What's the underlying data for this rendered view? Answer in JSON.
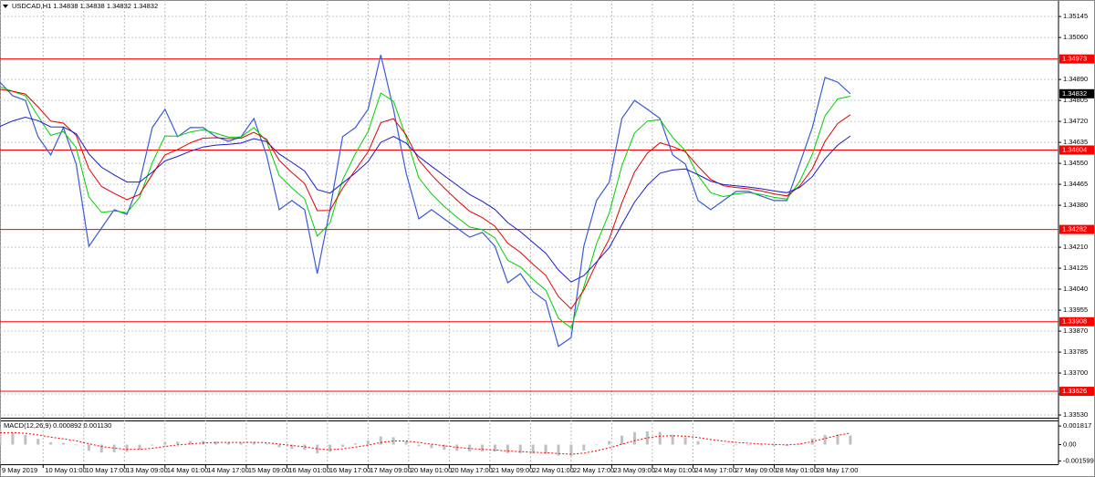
{
  "chart_data": [
    {
      "type": "line",
      "title": "USDCAD,H1  1.34838 1.34838 1.34832 1.34832",
      "x": [
        0,
        5,
        10,
        15,
        20,
        25,
        30,
        35,
        40,
        45,
        50,
        55,
        60,
        65,
        70,
        75,
        80,
        85,
        90,
        95,
        100,
        105,
        110,
        115,
        120,
        125,
        130,
        135,
        140,
        145,
        150,
        155,
        160,
        165,
        170,
        175,
        180,
        185,
        190,
        195,
        200,
        205,
        210,
        215,
        220,
        225,
        230,
        235,
        240,
        245,
        250,
        255,
        260,
        265,
        270,
        275,
        280,
        285,
        290,
        295,
        300,
        305,
        310,
        315,
        320,
        325,
        330,
        335
      ],
      "xlim": [
        0,
        417
      ],
      "xticks": [
        {
          "value": 0,
          "label": "9 May 2019"
        },
        {
          "value": 17,
          "label": "10 May 01:00"
        },
        {
          "value": 33,
          "label": "10 May 17:00"
        },
        {
          "value": 49,
          "label": "13 May 09:00"
        },
        {
          "value": 65,
          "label": "14 May 01:00"
        },
        {
          "value": 81,
          "label": "14 May 17:00"
        },
        {
          "value": 97,
          "label": "15 May 09:00"
        },
        {
          "value": 113,
          "label": "16 May 01:00"
        },
        {
          "value": 129,
          "label": "16 May 17:00"
        },
        {
          "value": 145,
          "label": "17 May 09:00"
        },
        {
          "value": 161,
          "label": "20 May 01:00"
        },
        {
          "value": 177,
          "label": "20 May 17:00"
        },
        {
          "value": 193,
          "label": "21 May 09:00"
        },
        {
          "value": 209,
          "label": "22 May 01:00"
        },
        {
          "value": 225,
          "label": "22 May 17:00"
        },
        {
          "value": 241,
          "label": "23 May 09:00"
        },
        {
          "value": 257,
          "label": "24 May 01:00"
        },
        {
          "value": 273,
          "label": "24 May 17:00"
        },
        {
          "value": 289,
          "label": "27 May 09:00"
        },
        {
          "value": 305,
          "label": "28 May 01:00"
        },
        {
          "value": 321,
          "label": "28 May 17:00"
        }
      ],
      "ylim": [
        1.33519,
        1.35212
      ],
      "yticks": [
        1.35145,
        {
          "value": 1.3506,
          "label": "1.35060"
        },
        {
          "value": 1.3489,
          "label": "1.34890"
        },
        1.34805,
        {
          "value": 1.3472,
          "label": "1.34720"
        },
        1.34635,
        {
          "value": 1.3455,
          "label": "1.34550"
        },
        1.34465,
        {
          "value": 1.3438,
          "label": "1.34380"
        },
        {
          "value": 1.3421,
          "label": "1.34210"
        },
        1.34125,
        {
          "value": 1.3404,
          "label": "1.34040"
        },
        1.33955,
        {
          "value": 1.3387,
          "label": "1.33870"
        },
        1.33785,
        {
          "value": 1.337,
          "label": "1.33700"
        },
        1.33615,
        {
          "value": 1.3353,
          "label": "1.33530"
        }
      ],
      "grid": true,
      "series": [
        {
          "color": "#3a5ad8",
          "values": [
            1.34879,
            1.34824,
            1.34805,
            1.34658,
            1.34584,
            1.34695,
            1.34547,
            1.34214,
            1.34288,
            1.34362,
            1.34343,
            1.34473,
            1.34695,
            1.34769,
            1.34658,
            1.34695,
            1.34695,
            1.34658,
            1.34639,
            1.34658,
            1.34732,
            1.34584,
            1.34362,
            1.34399,
            1.34362,
            1.34103,
            1.34362,
            1.34658,
            1.34695,
            1.34769,
            1.3499,
            1.34769,
            1.3451,
            1.34325,
            1.34362,
            1.34325,
            1.34288,
            1.34251,
            1.3427,
            1.34214,
            1.34066,
            1.34103,
            1.34029,
            1.33992,
            1.33808,
            1.33844,
            1.34214,
            1.34399,
            1.34473,
            1.34732,
            1.34805,
            1.34769,
            1.34732,
            1.34584,
            1.34547,
            1.34399,
            1.34362,
            1.34399,
            1.34436,
            1.34436,
            1.34417,
            1.34399,
            1.34399,
            1.34547,
            1.34695,
            1.34898,
            1.34879,
            1.34832
          ]
        },
        {
          "color": "#00d000",
          "values": [
            1.3486,
            1.34842,
            1.34824,
            1.34741,
            1.34663,
            1.34679,
            1.34613,
            1.34414,
            1.34351,
            1.34357,
            1.3435,
            1.34412,
            1.34553,
            1.34661,
            1.3466,
            1.34677,
            1.34686,
            1.34672,
            1.34656,
            1.34657,
            1.34695,
            1.3464,
            1.34501,
            1.3445,
            1.34406,
            1.34255,
            1.34308,
            1.34483,
            1.34589,
            1.34679,
            1.34835,
            1.34802,
            1.34656,
            1.34491,
            1.34426,
            1.34376,
            1.34332,
            1.34292,
            1.34281,
            1.34248,
            1.34157,
            1.3413,
            1.3408,
            1.34036,
            1.33922,
            1.33883,
            1.34049,
            1.34224,
            1.34348,
            1.3454,
            1.34673,
            1.34721,
            1.34727,
            1.34655,
            1.34601,
            1.345,
            1.34431,
            1.34415,
            1.34426,
            1.34431,
            1.34424,
            1.34412,
            1.34405,
            1.34476,
            1.34586,
            1.34742,
            1.34811,
            1.34822
          ]
        },
        {
          "color": "#e00000",
          "values": [
            1.3485,
            1.34842,
            1.34831,
            1.34779,
            1.34721,
            1.34713,
            1.34663,
            1.34528,
            1.34456,
            1.34428,
            1.34403,
            1.34424,
            1.34505,
            1.34584,
            1.34606,
            1.34633,
            1.34652,
            1.34654,
            1.3465,
            1.34652,
            1.34676,
            1.34648,
            1.34562,
            1.34513,
            1.34468,
            1.34358,
            1.34359,
            1.34449,
            1.34523,
            1.34597,
            1.34715,
            1.34731,
            1.34665,
            1.34563,
            1.34503,
            1.3445,
            1.34401,
            1.34356,
            1.3433,
            1.34295,
            1.34226,
            1.34189,
            1.34141,
            1.34096,
            1.3401,
            1.3396,
            1.34036,
            1.34145,
            1.34243,
            1.3439,
            1.34515,
            1.34591,
            1.34633,
            1.34618,
            1.34597,
            1.34538,
            1.34485,
            1.34459,
            1.34452,
            1.34447,
            1.34438,
            1.34426,
            1.34418,
            1.34457,
            1.34528,
            1.34639,
            1.34711,
            1.34747
          ]
        },
        {
          "color": "#1a1ac8",
          "values": [
            1.347,
            1.34722,
            1.34737,
            1.34723,
            1.34698,
            1.34697,
            1.3467,
            1.34588,
            1.34534,
            1.34503,
            1.34474,
            1.34474,
            1.34514,
            1.3456,
            1.34578,
            1.34599,
            1.34616,
            1.34624,
            1.34627,
            1.34632,
            1.3465,
            1.34638,
            1.34588,
            1.34554,
            1.34519,
            1.34444,
            1.34429,
            1.3447,
            1.34511,
            1.34557,
            1.34635,
            1.34659,
            1.34632,
            1.34577,
            1.34538,
            1.345,
            1.34462,
            1.34424,
            1.34396,
            1.34363,
            1.3431,
            1.34273,
            1.34229,
            1.34186,
            1.34118,
            1.34069,
            1.34095,
            1.3415,
            1.34208,
            1.34302,
            1.34393,
            1.34461,
            1.3451,
            1.34523,
            1.34527,
            1.34504,
            1.34478,
            1.34464,
            1.34459,
            1.34454,
            1.34447,
            1.34438,
            1.34431,
            1.34452,
            1.34496,
            1.34568,
            1.34624,
            1.34661
          ]
        }
      ],
      "hlines": [
        {
          "value": 1.34973,
          "color": "#ff0000"
        },
        {
          "value": 1.34604,
          "color": "#ff0000"
        },
        {
          "value": 1.34282,
          "color": "#ff0000"
        },
        {
          "value": 1.33908,
          "color": "#ff0000"
        },
        {
          "value": 1.33626,
          "color": "#ff0000"
        }
      ],
      "last_price": 1.34832
    },
    {
      "type": "macd",
      "title": "MACD(12,26,9) 0.000892 0.001130",
      "ylim": [
        -0.00192,
        0.00227
      ],
      "yticks": [
        0.001817,
        {
          "value": 0,
          "label": "0.00"
        },
        -0.001599
      ],
      "histogram": {
        "color": "#c0c0c0",
        "values": [
          0.0015,
          0.0012,
          0.00094,
          0.00056,
          0.00023,
          0.00016,
          -7e-05,
          -0.0006,
          -0.00078,
          -0.00075,
          -0.00071,
          -0.0005,
          -9e-05,
          0.00024,
          0.00028,
          0.00034,
          0.00036,
          0.0003,
          0.00023,
          0.0002,
          0.00026,
          0.0001,
          -0.00026,
          -0.00041,
          -0.00051,
          -0.00086,
          -0.0007,
          -0.00021,
          0.00012,
          0.0004,
          0.0008,
          0.00072,
          0.00033,
          -0.00014,
          -0.00035,
          -0.0005,
          -0.00061,
          -0.00068,
          -0.00066,
          -0.00068,
          -0.00084,
          -0.00084,
          -0.00088,
          -0.0009,
          -0.00108,
          -0.00109,
          -0.00059,
          -5e-05,
          0.00035,
          0.00088,
          0.00122,
          0.0013,
          0.00123,
          0.00095,
          0.0007,
          0.00034,
          7e-05,
          -5e-05,
          -7e-05,
          -7e-05,
          -9e-05,
          -0.00012,
          -0.00013,
          5e-05,
          0.0006,
          0.00095,
          0.001,
          0.000892
        ]
      },
      "signal": {
        "color": "#ff0000",
        "values": [
          0.00115,
          0.00117,
          0.0011,
          0.00094,
          0.00073,
          0.00056,
          0.00037,
          8e-05,
          -0.00018,
          -0.00035,
          -0.00046,
          -0.00047,
          -0.00036,
          -0.00018,
          -4e-05,
          7e-05,
          0.00016,
          0.0002,
          0.00021,
          0.00021,
          0.00022,
          0.00018,
          5e-05,
          -9e-05,
          -0.00022,
          -0.00041,
          -0.0005,
          -0.00041,
          -0.00025,
          -6e-05,
          0.0002,
          0.00036,
          0.00035,
          0.0002,
          4e-05,
          -0.00012,
          -0.00027,
          -0.00039,
          -0.00047,
          -0.00053,
          -0.00062,
          -0.00069,
          -0.00075,
          -0.0008,
          -0.00088,
          -0.00094,
          -0.00084,
          -0.0006,
          -0.00032,
          4e-05,
          0.00039,
          0.00066,
          0.00083,
          0.00087,
          0.00082,
          0.00068,
          0.0005,
          0.00034,
          0.00022,
          0.00013,
          6e-05,
          1e-05,
          -3e-05,
          5e-05,
          0.0003,
          0.0006,
          0.0009,
          0.00113
        ]
      }
    }
  ]
}
